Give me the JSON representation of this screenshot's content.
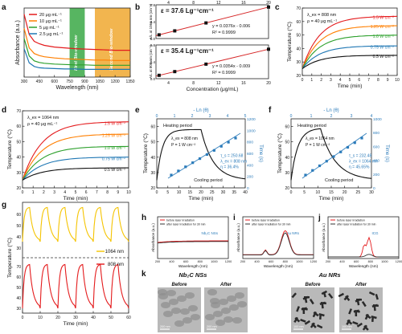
{
  "figure": {
    "panel_letters": [
      "a",
      "b",
      "c",
      "d",
      "e",
      "f",
      "g",
      "h",
      "i",
      "j",
      "k"
    ]
  },
  "colors": {
    "red": "#e41a1c",
    "orange": "#ff7f00",
    "yellow": "#f5c400",
    "green": "#2ca02c",
    "blue": "#1f77b4",
    "black": "#111111",
    "fit": "#d62728",
    "teal_points": "#2b7bba",
    "nir1": "#3aa845",
    "nir2": "#f0a830"
  },
  "chart_data": [
    {
      "id": "a",
      "type": "line",
      "xlabel": "Wavelength (nm)",
      "ylabel": "Absorbance (a.u.)",
      "xlim": [
        300,
        1350
      ],
      "xticks": [
        300,
        450,
        600,
        750,
        900,
        1050,
        1200,
        1350
      ],
      "bands": [
        {
          "label": "First Bio-window",
          "from": 750,
          "to": 900
        },
        {
          "label": "Second Bio-window",
          "from": 1000,
          "to": 1350
        }
      ],
      "series": [
        {
          "name": "20 μg mL⁻¹",
          "x": [
            300,
            350,
            400,
            450,
            500,
            600,
            700,
            800,
            900,
            1000,
            1100,
            1200,
            1300,
            1350
          ],
          "y": [
            1.55,
            1.05,
            0.88,
            0.82,
            0.78,
            0.74,
            0.72,
            0.7,
            0.69,
            0.68,
            0.67,
            0.66,
            0.66,
            0.66
          ]
        },
        {
          "name": "10 μg mL⁻¹",
          "x": [
            300,
            350,
            400,
            450,
            500,
            600,
            700,
            800,
            900,
            1000,
            1100,
            1200,
            1300,
            1350
          ],
          "y": [
            1.2,
            0.72,
            0.58,
            0.53,
            0.5,
            0.47,
            0.45,
            0.44,
            0.43,
            0.42,
            0.42,
            0.41,
            0.41,
            0.41
          ]
        },
        {
          "name": "5 μg mL⁻¹",
          "x": [
            300,
            350,
            400,
            450,
            500,
            600,
            700,
            800,
            900,
            1000,
            1100,
            1200,
            1300,
            1350
          ],
          "y": [
            0.95,
            0.52,
            0.4,
            0.36,
            0.34,
            0.32,
            0.31,
            0.3,
            0.3,
            0.29,
            0.29,
            0.29,
            0.29,
            0.29
          ]
        },
        {
          "name": "2.5 μg mL⁻¹",
          "x": [
            300,
            350,
            400,
            450,
            500,
            600,
            700,
            800,
            900,
            1000,
            1100,
            1200,
            1300,
            1350
          ],
          "y": [
            0.7,
            0.35,
            0.26,
            0.23,
            0.22,
            0.21,
            0.2,
            0.2,
            0.19,
            0.19,
            0.19,
            0.19,
            0.19,
            0.19
          ]
        }
      ]
    },
    {
      "id": "b",
      "type": "scatter",
      "xlabel": "Concentration (μg/mL)",
      "xlim": [
        2,
        20
      ],
      "xticks": [
        4,
        8,
        12,
        16,
        20
      ],
      "subplots": [
        {
          "ylabel": "A/L at 1064 nm (cm⁻¹)",
          "epsilon": "ε = 37.6 Lg⁻¹cm⁻¹",
          "equation": "y = 0.0376x - 0.006",
          "r2": "R² = 0.9999",
          "ylim": [
            0,
            0.8
          ],
          "yticks": [
            0.0,
            0.4,
            0.8
          ],
          "x": [
            2.5,
            5,
            10,
            20
          ],
          "y": [
            0.088,
            0.182,
            0.37,
            0.746
          ]
        },
        {
          "ylabel": "A/L at 808 nm (cm⁻¹)",
          "epsilon": "ε = 35.4 Lg⁻¹cm⁻¹",
          "equation": "y = 0.0354x - 0.009",
          "r2": "R² = 0.9999",
          "ylim": [
            0,
            0.8
          ],
          "yticks": [
            0.0,
            0.4,
            0.8
          ],
          "x": [
            2.5,
            5,
            10,
            20
          ],
          "y": [
            0.08,
            0.168,
            0.345,
            0.699
          ]
        }
      ]
    },
    {
      "id": "c",
      "type": "line",
      "xlabel": "Time (min)",
      "ylabel": "Temperature (°C)",
      "lambda": "λ_ex = 808 nm",
      "rho": "ρ = 40 μg mL⁻¹",
      "xlim": [
        0,
        10
      ],
      "ylim": [
        20,
        70
      ],
      "yticks": [
        20,
        30,
        40,
        50,
        60,
        70
      ],
      "xticks": [
        0,
        1,
        2,
        3,
        4,
        5,
        6,
        7,
        8,
        9,
        10
      ],
      "series": [
        {
          "name": "1.5 W cm⁻²",
          "plateau": 64
        },
        {
          "name": "1.25 W cm⁻²",
          "plateau": 57
        },
        {
          "name": "1.0 W cm⁻²",
          "plateau": 50
        },
        {
          "name": "0.75 W cm⁻²",
          "plateau": 42
        },
        {
          "name": "0.5 W cm⁻²",
          "plateau": 35
        }
      ]
    },
    {
      "id": "d",
      "type": "line",
      "xlabel": "Time (min)",
      "ylabel": "Temperature (°C)",
      "lambda": "λ_ex = 1064 nm",
      "rho": "ρ = 40 μg mL⁻¹",
      "xlim": [
        0,
        10
      ],
      "ylim": [
        20,
        70
      ],
      "yticks": [
        20,
        30,
        40,
        50,
        60,
        70
      ],
      "xticks": [
        0,
        1,
        2,
        3,
        4,
        5,
        6,
        7,
        8,
        9,
        10
      ],
      "series": [
        {
          "name": "1.5 W cm⁻²",
          "plateau": 63
        },
        {
          "name": "1.25 W cm⁻²",
          "plateau": 55
        },
        {
          "name": "1.0 W cm⁻²",
          "plateau": 47
        },
        {
          "name": "0.75 W cm⁻²",
          "plateau": 40
        },
        {
          "name": "0.5 W cm⁻²",
          "plateau": 33
        }
      ]
    },
    {
      "id": "e",
      "type": "line",
      "xlabel": "Time (min)",
      "ylabel": "Temperature (°C)",
      "ylabel_right": "Time (s)",
      "xlabel_top": "- Ln (θ)",
      "xlim": [
        0,
        40
      ],
      "ylim": [
        20,
        65
      ],
      "yticks": [
        20,
        30,
        40,
        50,
        60
      ],
      "xticks": [
        0,
        5,
        10,
        15,
        20,
        25,
        30,
        35,
        40
      ],
      "top_ticks": [
        0,
        1,
        2,
        3,
        4,
        5
      ],
      "right_ticks": [
        0,
        200,
        400,
        600,
        800,
        1000,
        1200
      ],
      "heating": "Heating period",
      "cooling": "Cooling period",
      "lambda": "λ_ex = 808 nm",
      "power": "P = 1 W cm⁻²",
      "tau": "τ_s = 250.68",
      "lambda2": "λ_ex = 808 nm",
      "eta": "η = 36.4%"
    },
    {
      "id": "f",
      "type": "line",
      "xlabel": "Time (min)",
      "ylabel": "Temperature (°C)",
      "ylabel_right": "Time (s)",
      "xlabel_top": "- Ln (θ)",
      "xlim": [
        0,
        30
      ],
      "ylim": [
        20,
        65
      ],
      "yticks": [
        20,
        30,
        40,
        50,
        60
      ],
      "xticks": [
        0,
        5,
        10,
        15,
        20,
        25,
        30
      ],
      "top_ticks": [
        0,
        1,
        2,
        3,
        4
      ],
      "right_ticks": [
        0,
        200,
        400,
        600,
        800,
        1000
      ],
      "heating": "Heating period",
      "cooling": "Cooling period",
      "lambda": "λ_ex = 1064 nm",
      "power": "P = 1 W cm⁻²",
      "tau": "τ_s = 232.48",
      "lambda2": "λ_ex = 1064 nm",
      "eta": "η = 45.65%"
    },
    {
      "id": "g",
      "type": "line",
      "xlabel": "Time (min)",
      "ylabel": "Temperature (°C)",
      "xlim": [
        0,
        60
      ],
      "xticks": [
        0,
        10,
        20,
        30,
        40,
        50,
        60
      ],
      "yticks_top": [
        30,
        40,
        50,
        60
      ],
      "yticks_bottom": [
        30,
        40,
        50,
        60,
        70
      ],
      "series": [
        {
          "name": "1064 nm"
        },
        {
          "name": "808 nm"
        }
      ]
    },
    {
      "id": "h",
      "type": "line",
      "xlabel": "Wavelength (nm)",
      "ylabel": "Absorbance (a.u.)",
      "xlim": [
        200,
        1200
      ],
      "legend": [
        "before laser irradiation",
        "after laser irradiation for 30 min"
      ],
      "label": "Nb₂C NSs",
      "xticks": [
        200,
        400,
        600,
        800,
        1000,
        1200
      ]
    },
    {
      "id": "i",
      "type": "line",
      "xlabel": "Wavelength (nm)",
      "ylabel": "Absorbance (a.u.)",
      "xlim": [
        200,
        1200
      ],
      "legend": [
        "before laser irradiation",
        "after laser irradiation for 30 min"
      ],
      "label": "Au NRs",
      "xticks": [
        200,
        400,
        600,
        800,
        1000,
        1200
      ]
    },
    {
      "id": "j",
      "type": "line",
      "xlabel": "Wavelength (nm)",
      "ylabel": "Absorbance (a.u.)",
      "xlim": [
        200,
        1200
      ],
      "legend": [
        "before laser irradiation",
        "after laser irradiation for 30 min"
      ],
      "label": "ICG",
      "xticks": [
        200,
        400,
        600,
        800,
        1000,
        1200
      ]
    }
  ],
  "panel_k": {
    "group1": "Nb₂C NSs",
    "group2": "Au NRs",
    "before": "Before",
    "after": "After",
    "scale1": "200 nm",
    "scale2": "200 nm",
    "scale3": "100 nm",
    "scale4": "100 nm"
  }
}
